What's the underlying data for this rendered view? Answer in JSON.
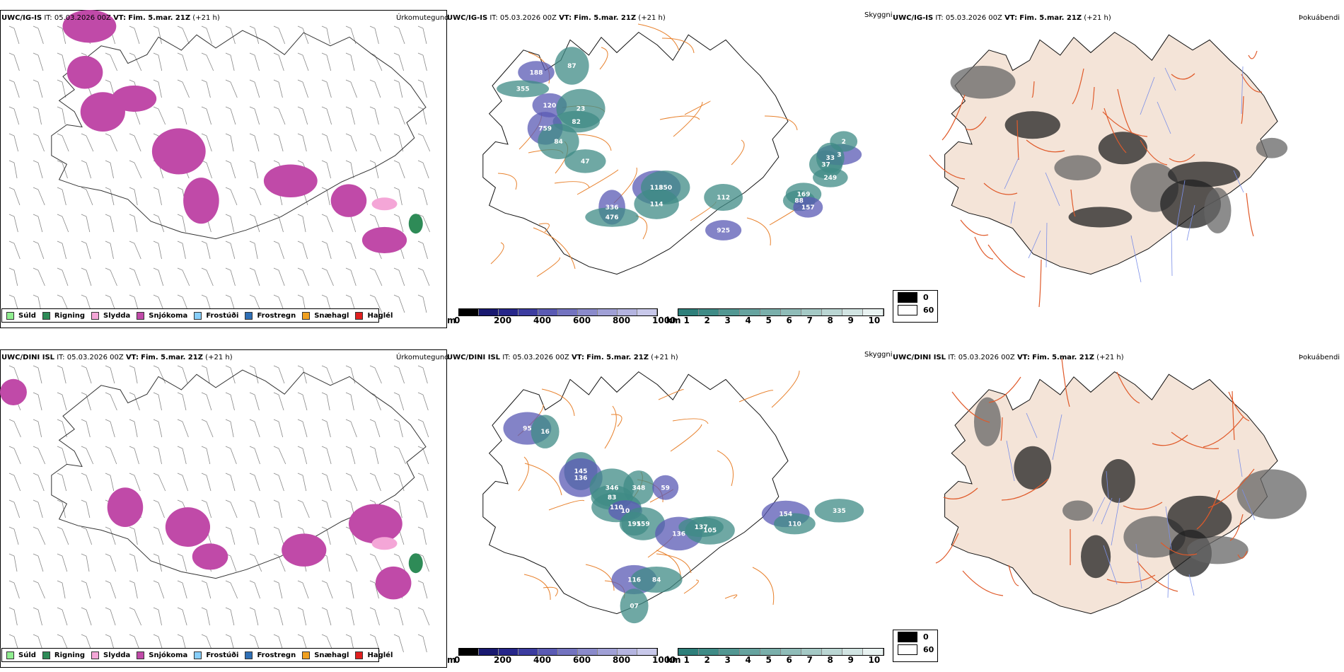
{
  "rows": [
    {
      "model": "UWC/IG-IS",
      "it": "IT: 05.03.2026 00Z",
      "vt_label": "VT:",
      "vt": "Fim. 5.mar. 21Z",
      "lead": "(+21 h)"
    },
    {
      "model": "UWC/DINI ISL",
      "it": "IT: 05.03.2026 00Z",
      "vt_label": "VT:",
      "vt": "Fim. 5.mar. 21Z",
      "lead": "(+21 h)"
    }
  ],
  "panels": {
    "precip_title": "Úrkomutegund",
    "cloud_title": "Skyggni",
    "fog_title": "Þokuábendi"
  },
  "precip_legend": [
    {
      "label": "Súld",
      "color": "#90ee90"
    },
    {
      "label": "Rigning",
      "color": "#2e8b57"
    },
    {
      "label": "Slydda",
      "color": "#f4a6d7"
    },
    {
      "label": "Snjókoma",
      "color": "#c04aa8"
    },
    {
      "label": "Frostúði",
      "color": "#87cefa"
    },
    {
      "label": "Frostregn",
      "color": "#2f6fb5"
    },
    {
      "label": "Snæhagl",
      "color": "#f0a020"
    },
    {
      "label": "Haglél",
      "color": "#e02020"
    }
  ],
  "scale_m": {
    "unit": "m",
    "ticks": [
      "0",
      "200",
      "400",
      "600",
      "800",
      "1000"
    ],
    "colors": [
      "#000000",
      "#191970",
      "#26268a",
      "#3c3ca0",
      "#5a5ab4",
      "#7373c0",
      "#8a8acb",
      "#a0a0d6",
      "#b4b4e0",
      "#c8c8ea"
    ]
  },
  "scale_km": {
    "unit": "km",
    "ticks": [
      "1",
      "2",
      "3",
      "4",
      "5",
      "6",
      "7",
      "8",
      "9",
      "10"
    ],
    "colors": [
      "#2e7f7a",
      "#3f8b86",
      "#529792",
      "#66a39f",
      "#7aafab",
      "#8fbcb8",
      "#a4c9c5",
      "#bad6d3",
      "#d1e4e2",
      "#e8f2f1"
    ]
  },
  "fog_legend": [
    {
      "label": "0",
      "color": "#000000"
    },
    {
      "label": "60",
      "color": "#ffffff"
    }
  ],
  "cloud_labels_top": [
    "188",
    "87",
    "355",
    "120",
    "23",
    "82",
    "759",
    "84",
    "47",
    "118",
    "350",
    "114",
    "336",
    "476",
    "112",
    "925",
    "169",
    "88",
    "157",
    "37",
    "249",
    "3",
    "2",
    "33"
  ],
  "cloud_labels_bottom": [
    "95",
    "16",
    "145",
    "136",
    "346",
    "348",
    "59",
    "83",
    "110",
    "10",
    "195",
    "159",
    "136",
    "137",
    "105",
    "154",
    "110",
    "335",
    "116",
    "07",
    "84"
  ]
}
